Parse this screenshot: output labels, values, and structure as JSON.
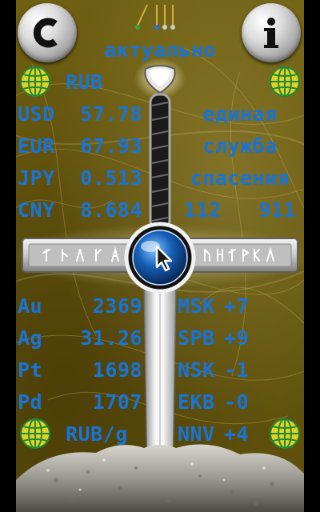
{
  "header": {
    "status_label": "актуально",
    "base_currency": "RUB"
  },
  "rates": [
    {
      "code": "USD",
      "value": "57.78"
    },
    {
      "code": "EUR",
      "value": "67.93"
    },
    {
      "code": "JPY",
      "value": "0.513"
    },
    {
      "code": "CNY",
      "value": "8.684"
    }
  ],
  "emergency": {
    "line1": "единая",
    "line2": "служба",
    "line3": "спасения",
    "number1": "112",
    "number2": "911"
  },
  "metals": [
    {
      "code": "Au",
      "value": "2369"
    },
    {
      "code": "Ag",
      "value": "31.26"
    },
    {
      "code": "Pt",
      "value": "1698"
    },
    {
      "code": "Pd",
      "value": "1707"
    }
  ],
  "metals_unit": "RUB/g",
  "timezones": [
    {
      "city": "MSK",
      "offset": "+7"
    },
    {
      "city": "SPB",
      "offset": "+9"
    },
    {
      "city": "NSK",
      "offset": "-1"
    },
    {
      "city": "EKB",
      "offset": "-0"
    },
    {
      "city": "NNV",
      "offset": "+4"
    }
  ],
  "colors": {
    "text_blue": "#1874d6",
    "background": "#6a5a10",
    "globe_yellow": "#e8d020",
    "globe_green": "#1d8a3a"
  },
  "icons": {
    "refresh": "refresh-icon",
    "info": "info-icon",
    "globe": "globe-icon",
    "cursor": "cursor-icon"
  }
}
